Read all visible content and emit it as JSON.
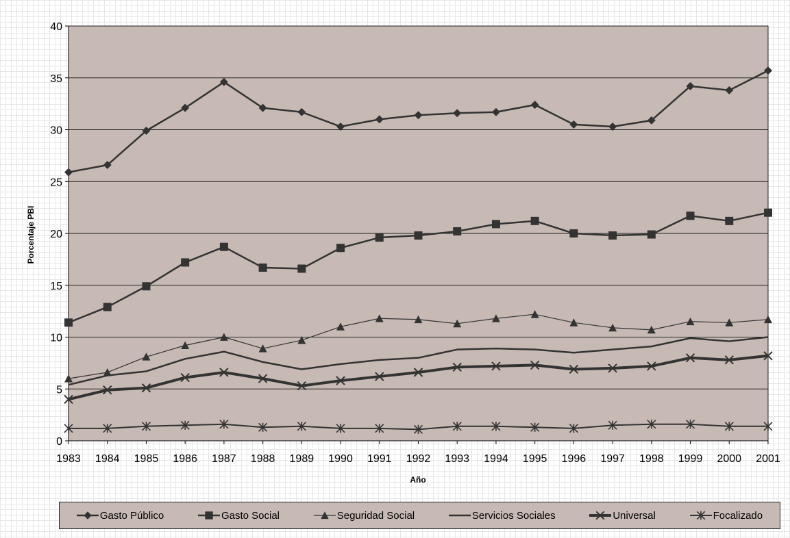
{
  "chart_data": {
    "type": "line",
    "title": "",
    "xlabel": "Año",
    "ylabel": "Porcentaje PBI",
    "ylim": [
      0,
      40
    ],
    "yticks": [
      "0",
      "5",
      "10",
      "15",
      "20",
      "25",
      "30",
      "35",
      "40"
    ],
    "categories": [
      "1983",
      "1984",
      "1985",
      "1986",
      "1987",
      "1988",
      "1989",
      "1990",
      "1991",
      "1992",
      "1993",
      "1994",
      "1995",
      "1996",
      "1997",
      "1998",
      "1999",
      "2000",
      "2001"
    ],
    "grid": "horizontal",
    "legend_position": "bottom",
    "series": [
      {
        "name": "Gasto Público",
        "marker": "diamond",
        "values": [
          25.9,
          26.6,
          29.9,
          32.1,
          34.6,
          32.1,
          31.7,
          30.3,
          31.0,
          31.4,
          31.6,
          31.7,
          32.4,
          30.5,
          30.3,
          30.9,
          34.2,
          33.8,
          35.7
        ]
      },
      {
        "name": "Gasto Social",
        "marker": "square",
        "values": [
          11.4,
          12.9,
          14.9,
          17.2,
          18.7,
          16.7,
          16.6,
          18.6,
          19.6,
          19.8,
          20.2,
          20.9,
          21.2,
          20.0,
          19.8,
          19.9,
          21.7,
          21.2,
          22.0
        ]
      },
      {
        "name": "Seguridad Social",
        "marker": "triangle",
        "values": [
          6.0,
          6.6,
          8.1,
          9.2,
          10.0,
          8.9,
          9.7,
          11.0,
          11.8,
          11.7,
          11.3,
          11.8,
          12.2,
          11.4,
          10.9,
          10.7,
          11.5,
          11.4,
          11.7
        ]
      },
      {
        "name": "Servicios Sociales",
        "marker": "dash",
        "values": [
          5.4,
          6.3,
          6.7,
          7.9,
          8.6,
          7.6,
          6.9,
          7.4,
          7.8,
          8.0,
          8.8,
          8.9,
          8.8,
          8.5,
          8.8,
          9.1,
          9.9,
          9.6,
          10.0
        ]
      },
      {
        "name": "Universal",
        "marker": "x",
        "values": [
          4.0,
          4.9,
          5.1,
          6.1,
          6.6,
          6.0,
          5.3,
          5.8,
          6.2,
          6.6,
          7.1,
          7.2,
          7.3,
          6.9,
          7.0,
          7.2,
          8.0,
          7.8,
          8.2
        ]
      },
      {
        "name": "Focalizado",
        "marker": "asterisk",
        "values": [
          1.2,
          1.2,
          1.4,
          1.5,
          1.6,
          1.3,
          1.4,
          1.2,
          1.2,
          1.1,
          1.4,
          1.4,
          1.3,
          1.2,
          1.5,
          1.6,
          1.6,
          1.4,
          1.4
        ]
      }
    ]
  },
  "colors": {
    "plot_background": "#c7b9b3",
    "line": "#333333",
    "gridline": "#222222"
  }
}
